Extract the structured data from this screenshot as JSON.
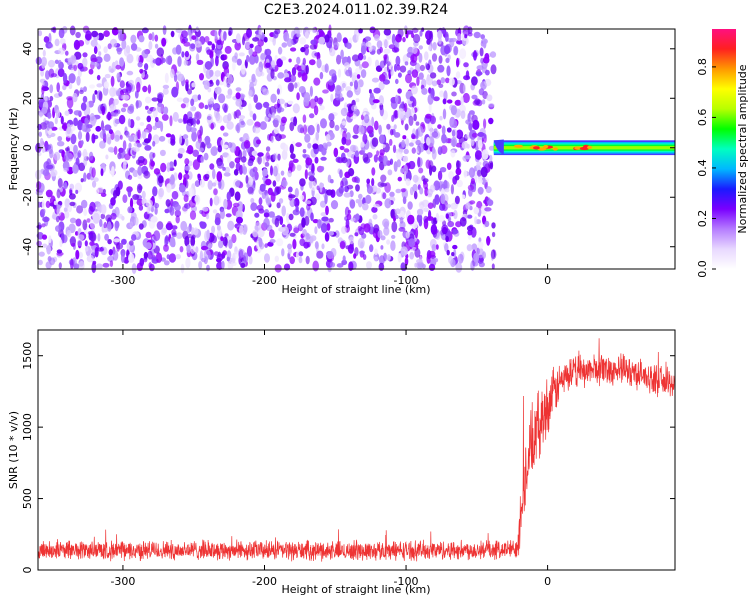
{
  "title": "C2E3.2024.011.02.39.R24",
  "chart_data": [
    {
      "type": "heatmap",
      "xlabel": "Height of straight line (km)",
      "ylabel": "Frequency (Hz)",
      "xlim": [
        -360,
        90
      ],
      "ylim": [
        -49,
        48
      ],
      "x_ticks": [
        -300,
        -200,
        -100,
        0
      ],
      "y_ticks": [
        -40,
        -20,
        0,
        20,
        40
      ],
      "noise_region_x": [
        -360,
        -38
      ],
      "signal_band": {
        "x": [
          -38,
          90
        ],
        "frequency_hz": 0,
        "half_width_hz": 3
      },
      "colorbar": {
        "label": "Normalized spectral amplitude",
        "range": [
          0.0,
          0.95
        ],
        "ticks": [
          0.0,
          0.2,
          0.4,
          0.6,
          0.8
        ],
        "colors": [
          "#ffffff",
          "#e8d8ff",
          "#b57cff",
          "#7a00ff",
          "#1a1aff",
          "#00b8ff",
          "#00ffc0",
          "#00ff00",
          "#b8ff00",
          "#ffff00",
          "#ff9a00",
          "#ff2020",
          "#ff1080"
        ]
      }
    },
    {
      "type": "line",
      "xlabel": "Height of straight line (km)",
      "ylabel": "SNR (10 * v/v)",
      "xlim": [
        -360,
        90
      ],
      "ylim": [
        0,
        1680
      ],
      "x_ticks": [
        -300,
        -200,
        -100,
        0
      ],
      "y_ticks": [
        0,
        500,
        1000,
        1500
      ],
      "color": "#ee3333",
      "series": [
        {
          "x": [
            -360,
            -330,
            -300,
            -270,
            -240,
            -210,
            -180,
            -150,
            -120,
            -90,
            -60,
            -40,
            -25,
            -22,
            -20,
            -18,
            -15,
            -12,
            -10,
            -8,
            -5,
            -2,
            0,
            5,
            10,
            20,
            30,
            40,
            50,
            60,
            70,
            80,
            90
          ],
          "values": [
            140,
            140,
            135,
            138,
            140,
            138,
            136,
            135,
            135,
            138,
            140,
            140,
            145,
            150,
            300,
            550,
            700,
            850,
            900,
            950,
            1050,
            1100,
            1150,
            1250,
            1330,
            1390,
            1400,
            1410,
            1400,
            1390,
            1350,
            1320,
            1300
          ],
          "noise_amplitude": [
            80,
            80,
            80,
            80,
            80,
            80,
            80,
            80,
            80,
            80,
            80,
            80,
            80,
            80,
            250,
            300,
            300,
            300,
            300,
            300,
            280,
            260,
            250,
            200,
            150,
            130,
            130,
            130,
            130,
            130,
            120,
            120,
            120
          ]
        }
      ]
    }
  ]
}
